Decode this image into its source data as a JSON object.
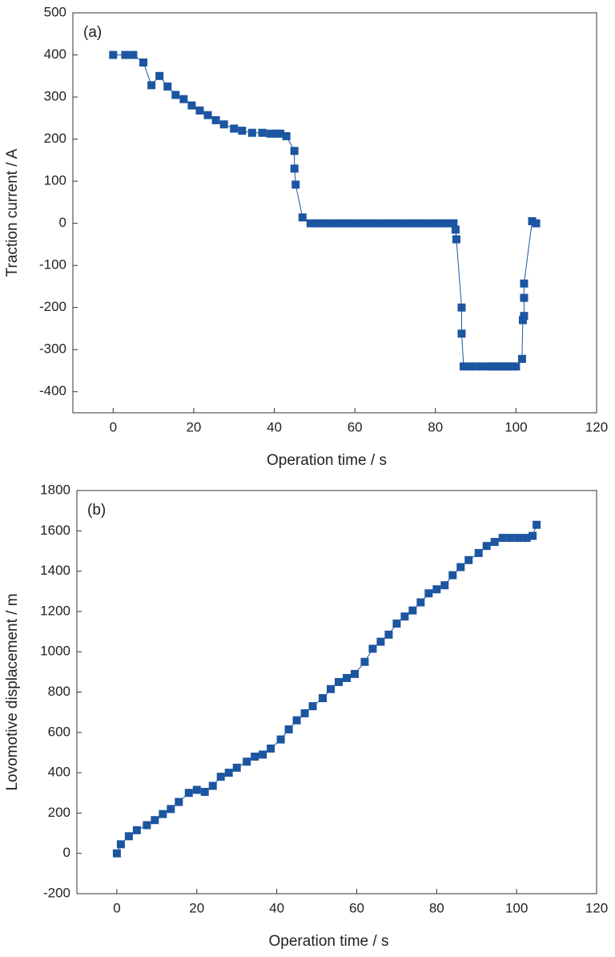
{
  "chart_data": [
    {
      "type": "line",
      "label": "(a)",
      "xlabel": "Operation time / s",
      "ylabel": "Traction current / A",
      "color": "#1c55a0",
      "x": [
        0,
        3,
        5,
        7.5,
        9.5,
        11.5,
        13.5,
        15.5,
        17.5,
        19.5,
        21.5,
        23.5,
        25.5,
        27.5,
        30,
        32,
        34.5,
        37,
        39,
        40.5,
        41.5,
        43,
        45,
        45,
        45.3,
        47,
        49,
        50.5,
        52,
        53.5,
        55,
        56.5,
        58,
        59.5,
        61,
        62.5,
        64,
        65.5,
        67,
        68.5,
        70,
        71.5,
        73,
        74.5,
        76,
        77.5,
        79,
        80.5,
        82,
        83.5,
        84.5,
        85,
        85.2,
        86.5,
        86.5,
        87,
        88.5,
        90,
        91.5,
        93,
        94,
        95,
        96,
        97,
        98,
        99,
        100,
        101.5,
        101.7,
        102,
        102,
        102,
        104,
        105
      ],
      "values": [
        400,
        400,
        400,
        382,
        328,
        350,
        325,
        305,
        295,
        280,
        268,
        257,
        245,
        235,
        225,
        220,
        215,
        215,
        213,
        213,
        213,
        207,
        172,
        130,
        92,
        14,
        0,
        0,
        0,
        0,
        0,
        0,
        0,
        0,
        0,
        0,
        0,
        0,
        0,
        0,
        0,
        0,
        0,
        0,
        0,
        0,
        0,
        0,
        0,
        0,
        0,
        -15,
        -38,
        -200,
        -262,
        -340,
        -340,
        -340,
        -340,
        -340,
        -340,
        -340,
        -340,
        -340,
        -340,
        -340,
        -340,
        -322,
        -230,
        -220,
        -177,
        -143,
        5,
        0
      ],
      "xlim": [
        -10,
        120
      ],
      "ylim": [
        -450,
        500
      ],
      "xticks": [
        0,
        20,
        40,
        60,
        80,
        100,
        120
      ],
      "yticks": [
        -400,
        -300,
        -200,
        -100,
        0,
        100,
        200,
        300,
        400,
        500
      ]
    },
    {
      "type": "line",
      "label": "(b)",
      "xlabel": "Operation time / s",
      "ylabel": "Lovomotive displacement / m",
      "color": "#1c55a0",
      "x": [
        0,
        1,
        3,
        5,
        7.5,
        9.5,
        11.5,
        13.5,
        15.5,
        18,
        20,
        22,
        24,
        26,
        28,
        30,
        32.5,
        34.5,
        36.5,
        38.5,
        41,
        43,
        45,
        47,
        49,
        51.5,
        53.5,
        55.5,
        57.5,
        59.5,
        62,
        64,
        66,
        68,
        70,
        72,
        74,
        76,
        78,
        80,
        82,
        84,
        86,
        88,
        90.5,
        92.5,
        94.5,
        96.5,
        98.5,
        100.5,
        102.5,
        104,
        105
      ],
      "values": [
        0,
        45,
        85,
        115,
        140,
        165,
        195,
        220,
        255,
        300,
        315,
        305,
        335,
        380,
        400,
        425,
        455,
        480,
        490,
        520,
        565,
        615,
        660,
        695,
        730,
        770,
        815,
        850,
        870,
        890,
        950,
        1015,
        1050,
        1085,
        1140,
        1175,
        1205,
        1245,
        1290,
        1310,
        1330,
        1380,
        1420,
        1455,
        1490,
        1525,
        1545,
        1565,
        1565,
        1565,
        1565,
        1575,
        1630
      ],
      "xlim": [
        -10,
        120
      ],
      "ylim": [
        -200,
        1800
      ],
      "xticks": [
        0,
        20,
        40,
        60,
        80,
        100,
        120
      ],
      "yticks": [
        -200,
        0,
        200,
        400,
        600,
        800,
        1000,
        1200,
        1400,
        1600,
        1800
      ]
    }
  ]
}
